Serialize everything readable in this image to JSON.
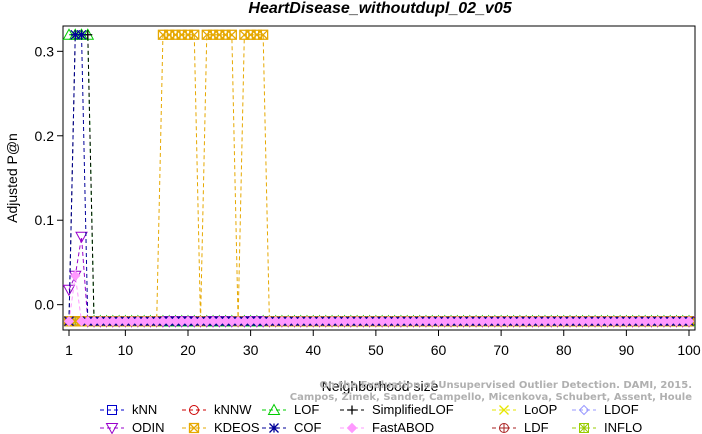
{
  "chart_data": {
    "type": "line",
    "title": "HeartDisease_withoutdupl_02_v05",
    "xlabel": "Neighborhood size",
    "ylabel": "Adjusted P@n",
    "xlim": [
      1,
      100
    ],
    "ylim": [
      -0.035,
      0.335
    ],
    "xticks": [
      1,
      10,
      20,
      30,
      40,
      50,
      60,
      70,
      80,
      90,
      100
    ],
    "yticks": [
      0.0,
      0.1,
      0.2,
      0.3
    ],
    "ytick_labels": [
      "0.0",
      "0.1",
      "0.2",
      "0.3"
    ],
    "grid": false,
    "legend_position": "bottom",
    "watermark": [
      "Campos, Zimek, Sander, Campello, Micenkova, Schubert, Assent, Houle",
      "On the Evaluation of Unsupervised Outlier Detection. DAMI, 2015."
    ],
    "baseline": -0.0196,
    "series": [
      {
        "name": "kNN",
        "color": "#0000cc",
        "marker": "square",
        "segments": [
          [
            1,
            -0.0196
          ],
          [
            100,
            -0.0196
          ]
        ]
      },
      {
        "name": "kNNW",
        "color": "#cc0000",
        "marker": "circle",
        "segments": [
          [
            1,
            -0.0196
          ],
          [
            100,
            -0.0196
          ]
        ]
      },
      {
        "name": "LOF",
        "color": "#00cc00",
        "marker": "triangle",
        "points": [
          [
            1,
            0.3196
          ],
          [
            2,
            0.3196
          ],
          [
            3,
            0.3196
          ],
          [
            4,
            0.3196
          ],
          [
            5,
            -0.0196
          ],
          [
            100,
            -0.0196
          ]
        ]
      },
      {
        "name": "SimplifiedLOF",
        "color": "#000000",
        "marker": "plus",
        "points": [
          [
            1,
            -0.0196
          ],
          [
            2,
            0.3196
          ],
          [
            3,
            0.3196
          ],
          [
            4,
            0.3196
          ],
          [
            5,
            -0.0196
          ],
          [
            100,
            -0.0196
          ]
        ]
      },
      {
        "name": "LoOP",
        "color": "#e6e600",
        "marker": "x",
        "segments": [
          [
            1,
            -0.0196
          ],
          [
            100,
            -0.0196
          ]
        ]
      },
      {
        "name": "LDOF",
        "color": "#9999ff",
        "marker": "diamond",
        "segments": [
          [
            1,
            -0.0196
          ],
          [
            100,
            -0.0196
          ]
        ]
      },
      {
        "name": "ODIN",
        "color": "#9900cc",
        "marker": "triangle-down",
        "points": [
          [
            1,
            0.0177
          ],
          [
            2,
            0.0343
          ],
          [
            3,
            0.0804
          ],
          [
            4,
            -0.0196
          ],
          [
            100,
            -0.0196
          ]
        ]
      },
      {
        "name": "KDEOS",
        "color": "#e6a800",
        "marker": "square-x",
        "points": [
          [
            1,
            -0.0196
          ],
          [
            15,
            -0.0196
          ],
          [
            16,
            0.3196
          ],
          [
            17,
            0.3196
          ],
          [
            18,
            0.3196
          ],
          [
            19,
            0.3196
          ],
          [
            20,
            0.3196
          ],
          [
            21,
            0.3196
          ],
          [
            22,
            -0.0196
          ],
          [
            23,
            0.3196
          ],
          [
            24,
            0.3196
          ],
          [
            25,
            0.3196
          ],
          [
            26,
            0.3196
          ],
          [
            27,
            0.3196
          ],
          [
            28,
            -0.0196
          ],
          [
            29,
            0.3196
          ],
          [
            30,
            0.3196
          ],
          [
            31,
            0.3196
          ],
          [
            32,
            0.3196
          ],
          [
            33,
            -0.0196
          ],
          [
            100,
            -0.0196
          ]
        ]
      },
      {
        "name": "COF",
        "color": "#000099",
        "marker": "asterisk",
        "points": [
          [
            1,
            -0.0196
          ],
          [
            2,
            0.3196
          ],
          [
            3,
            0.3196
          ],
          [
            4,
            -0.0196
          ],
          [
            100,
            -0.0196
          ]
        ]
      },
      {
        "name": "FastABOD",
        "color": "#ff99ff",
        "marker": "diamond-filled",
        "points": [
          [
            1,
            -0.0196
          ],
          [
            2,
            0.0343
          ],
          [
            3,
            -0.0196
          ],
          [
            100,
            -0.0196
          ]
        ]
      },
      {
        "name": "LDF",
        "color": "#aa2222",
        "marker": "circle-plus",
        "segments": [
          [
            1,
            -0.0196
          ],
          [
            100,
            -0.0196
          ]
        ]
      },
      {
        "name": "INFLO",
        "color": "#99cc00",
        "marker": "square-star",
        "segments": [
          [
            1,
            -0.0196
          ],
          [
            100,
            -0.0196
          ]
        ]
      }
    ]
  }
}
